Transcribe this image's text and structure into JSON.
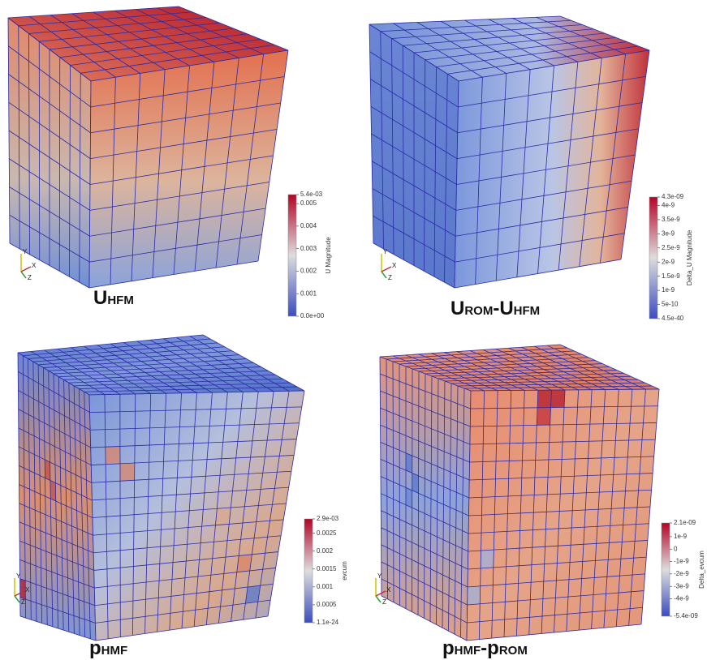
{
  "panels": [
    {
      "caption": [
        "U",
        "HFM"
      ],
      "colorbar_title": "U Magnitude",
      "colorbar_ticks": [
        "5.4e-03",
        "0.005",
        "0.004",
        "0.003",
        "0.002",
        "0.001",
        "0.0e+00"
      ]
    },
    {
      "caption": [
        "U",
        "ROM",
        "-U",
        "HFM"
      ],
      "colorbar_title": "Delta_U Magnitude",
      "colorbar_ticks": [
        "4.3e-09",
        "4e-9",
        "3.5e-9",
        "3e-9",
        "2.5e-9",
        "2e-9",
        "1.5e-9",
        "1e-9",
        "5e-10",
        "4.5e-40"
      ]
    },
    {
      "caption": [
        "p",
        "HMF"
      ],
      "colorbar_title": "evcum",
      "colorbar_ticks": [
        "2.9e-03",
        "0.0025",
        "0.002",
        "0.0015",
        "0.001",
        "0.0005",
        "1.1e-24"
      ]
    },
    {
      "caption": [
        "p",
        "HMF",
        "-p",
        "ROM"
      ],
      "colorbar_title": "Delta_evcum",
      "colorbar_ticks": [
        "2.1e-09",
        "1e-9",
        "0",
        "-1e-9",
        "-2e-9",
        "-3e-9",
        "-4e-9",
        "-5.4e-09"
      ]
    }
  ],
  "triad": [
    "Y",
    "X",
    "Z"
  ]
}
